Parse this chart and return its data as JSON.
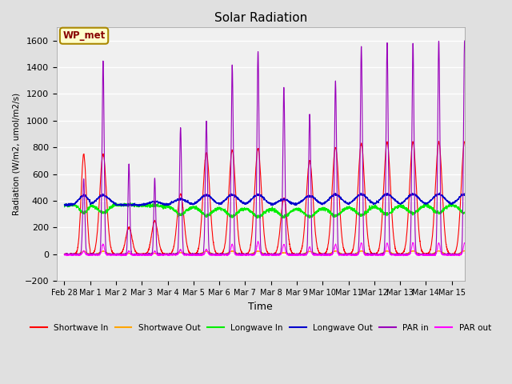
{
  "title": "Solar Radiation",
  "ylabel": "Radiation (W/m2, umol/m2/s)",
  "xlabel": "Time",
  "ylim": [
    -200,
    1700
  ],
  "yticks": [
    -200,
    0,
    200,
    400,
    600,
    800,
    1000,
    1200,
    1400,
    1600
  ],
  "annotation_text": "WP_met",
  "annotation_bg": "#FFFFCC",
  "annotation_border": "#AA8800",
  "colors": {
    "shortwave_in": "#FF0000",
    "shortwave_out": "#FFA500",
    "longwave_in": "#00EE00",
    "longwave_out": "#0000CC",
    "par_in": "#9900BB",
    "par_out": "#FF00FF"
  },
  "legend_labels": [
    "Shortwave In",
    "Shortwave Out",
    "Longwave In",
    "Longwave Out",
    "PAR in",
    "PAR out"
  ],
  "bg_color": "#E0E0E0",
  "plot_bg": "#F0F0F0",
  "xlim": [
    -0.3,
    15.5
  ],
  "tick_positions": [
    0,
    1,
    2,
    3,
    4,
    5,
    6,
    7,
    8,
    9,
    10,
    11,
    12,
    13,
    14,
    15
  ],
  "tick_labels": [
    "Feb 28",
    "Mar 1",
    "Mar 2",
    "Mar 3",
    "Mar 4",
    "Mar 5",
    "Mar 6",
    "Mar 7",
    "Mar 8",
    "Mar 9",
    "Mar 10",
    "Mar 11",
    "Mar 12",
    "Mar 13",
    "Mar 14",
    "Mar 15"
  ]
}
